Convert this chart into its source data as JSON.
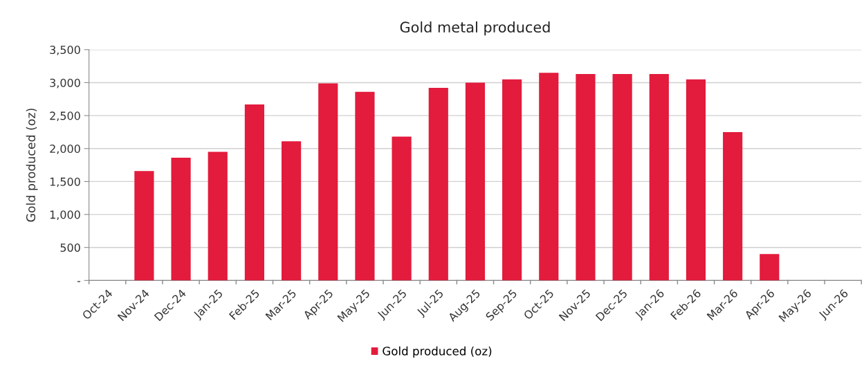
{
  "chart_data": {
    "type": "bar",
    "title": "Gold metal produced",
    "ylabel": "Gold produced (oz)",
    "categories": [
      "Oct-24",
      "Nov-24",
      "Dec-24",
      "Jan-25",
      "Feb-25",
      "Mar-25",
      "Apr-25",
      "May-25",
      "Jun-25",
      "Jul-25",
      "Aug-25",
      "Sep-25",
      "Oct-25",
      "Nov-25",
      "Dec-25",
      "Jan-26",
      "Feb-26",
      "Mar-26",
      "Apr-26",
      "May-26",
      "Jun-26"
    ],
    "series": [
      {
        "name": "Gold produced (oz)",
        "color": "#e31b3c",
        "values": [
          null,
          1660,
          1860,
          1950,
          2670,
          2110,
          2990,
          2860,
          2180,
          2920,
          3000,
          3050,
          3150,
          3130,
          3130,
          3130,
          3050,
          2250,
          400,
          null,
          null
        ]
      }
    ],
    "ylim": [
      0,
      3500
    ],
    "yticks": [
      {
        "value": 0,
        "label": "-"
      },
      {
        "value": 500,
        "label": "500"
      },
      {
        "value": 1000,
        "label": "1,000"
      },
      {
        "value": 1500,
        "label": "1,500"
      },
      {
        "value": 2000,
        "label": "2,000"
      },
      {
        "value": 2500,
        "label": "2,500"
      },
      {
        "value": 3000,
        "label": "3,000"
      },
      {
        "value": 3500,
        "label": "3,500"
      }
    ],
    "grid": "y",
    "legend": "bottom"
  }
}
